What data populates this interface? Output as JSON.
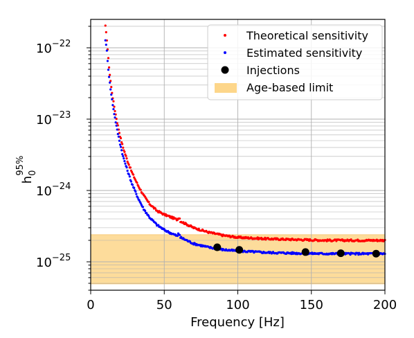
{
  "chart_data": {
    "type": "scatter",
    "title": "",
    "xlabel": "Frequency [Hz]",
    "ylabel": "h_0^{95%}",
    "ylabel_base": "h",
    "ylabel_sub": "0",
    "ylabel_sup": "95%",
    "xlim": [
      0,
      200
    ],
    "ylim": [
      4e-26,
      2.5e-22
    ],
    "yscale": "log",
    "grid": true,
    "legend_position": "top-right",
    "x_ticks": [
      "0",
      "50",
      "100",
      "150",
      "200"
    ],
    "x_tick_values": [
      0,
      50,
      100,
      150,
      200
    ],
    "y_ticks": [
      {
        "value": 1e-22,
        "base": "10",
        "exp": "−22"
      },
      {
        "value": 1e-23,
        "base": "10",
        "exp": "−23"
      },
      {
        "value": 1e-24,
        "base": "10",
        "exp": "−24"
      },
      {
        "value": 1e-25,
        "base": "10",
        "exp": "−25"
      }
    ],
    "colors": {
      "theoretical": "#ff0000",
      "estimated": "#0000ff",
      "injections": "#000000",
      "age_band": "#fdd68a",
      "grid": "#b0b0b0"
    },
    "series": [
      {
        "name": "Theoretical sensitivity",
        "marker": "dot",
        "curve": [
          [
            10,
            2e-22
          ],
          [
            11,
            1.3e-22
          ],
          [
            12,
            7e-23
          ],
          [
            13,
            4.2e-23
          ],
          [
            14,
            2.8e-23
          ],
          [
            15,
            2e-23
          ],
          [
            16,
            1.5e-23
          ],
          [
            18,
            9e-24
          ],
          [
            20,
            5.8e-24
          ],
          [
            22,
            4e-24
          ],
          [
            25,
            2.6e-24
          ],
          [
            28,
            1.8e-24
          ],
          [
            32,
            1.2e-24
          ],
          [
            36,
            8.5e-25
          ],
          [
            40,
            6.5e-25
          ],
          [
            45,
            5.2e-25
          ],
          [
            50,
            4.6e-25
          ],
          [
            55,
            4.2e-25
          ],
          [
            60,
            3.8e-25
          ],
          [
            70,
            3e-25
          ],
          [
            80,
            2.6e-25
          ],
          [
            90,
            2.35e-25
          ],
          [
            100,
            2.2e-25
          ],
          [
            120,
            2.1e-25
          ],
          [
            140,
            2.05e-25
          ],
          [
            160,
            2e-25
          ],
          [
            180,
            2e-25
          ],
          [
            200,
            2e-25
          ]
        ]
      },
      {
        "name": "Estimated sensitivity",
        "marker": "dot",
        "curve": [
          [
            10,
            1.3e-22
          ],
          [
            11,
            9e-23
          ],
          [
            12,
            5e-23
          ],
          [
            13,
            3.2e-23
          ],
          [
            14,
            2.2e-23
          ],
          [
            15,
            1.6e-23
          ],
          [
            16,
            1.2e-23
          ],
          [
            18,
            7e-24
          ],
          [
            20,
            4.5e-24
          ],
          [
            22,
            3e-24
          ],
          [
            25,
            1.9e-24
          ],
          [
            28,
            1.25e-24
          ],
          [
            32,
            8e-25
          ],
          [
            36,
            5.5e-25
          ],
          [
            40,
            4.2e-25
          ],
          [
            45,
            3.3e-25
          ],
          [
            50,
            2.8e-25
          ],
          [
            55,
            2.5e-25
          ],
          [
            60,
            2.25e-25
          ],
          [
            70,
            1.8e-25
          ],
          [
            80,
            1.6e-25
          ],
          [
            90,
            1.48e-25
          ],
          [
            100,
            1.42e-25
          ],
          [
            120,
            1.35e-25
          ],
          [
            140,
            1.32e-25
          ],
          [
            160,
            1.3e-25
          ],
          [
            180,
            1.3e-25
          ],
          [
            200,
            1.3e-25
          ]
        ]
      }
    ],
    "injections": {
      "name": "Injections",
      "points": [
        [
          86,
          1.6e-25
        ],
        [
          101,
          1.47e-25
        ],
        [
          146,
          1.37e-25
        ],
        [
          170,
          1.32e-25
        ],
        [
          194,
          1.3e-25
        ]
      ]
    },
    "age_limit": {
      "name": "Age-based limit",
      "y_low": 4.9e-26,
      "y_high": 2.4e-25
    }
  }
}
